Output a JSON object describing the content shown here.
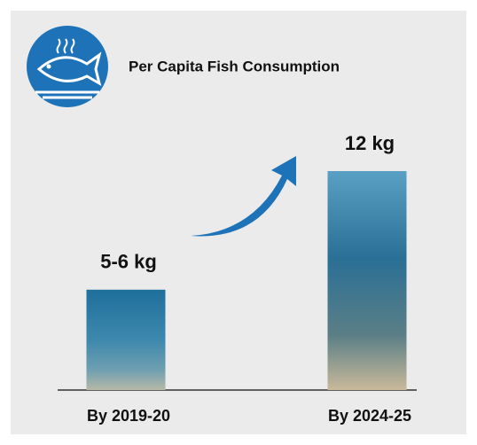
{
  "chart_data": {
    "type": "bar",
    "title": "Per Capita Fish Consumption",
    "categories": [
      "By 2019-20",
      "By 2024-25"
    ],
    "values": [
      5.5,
      12
    ],
    "value_labels": [
      "5-6 kg",
      "12 kg"
    ],
    "color": "#2f7fb5"
  }
}
